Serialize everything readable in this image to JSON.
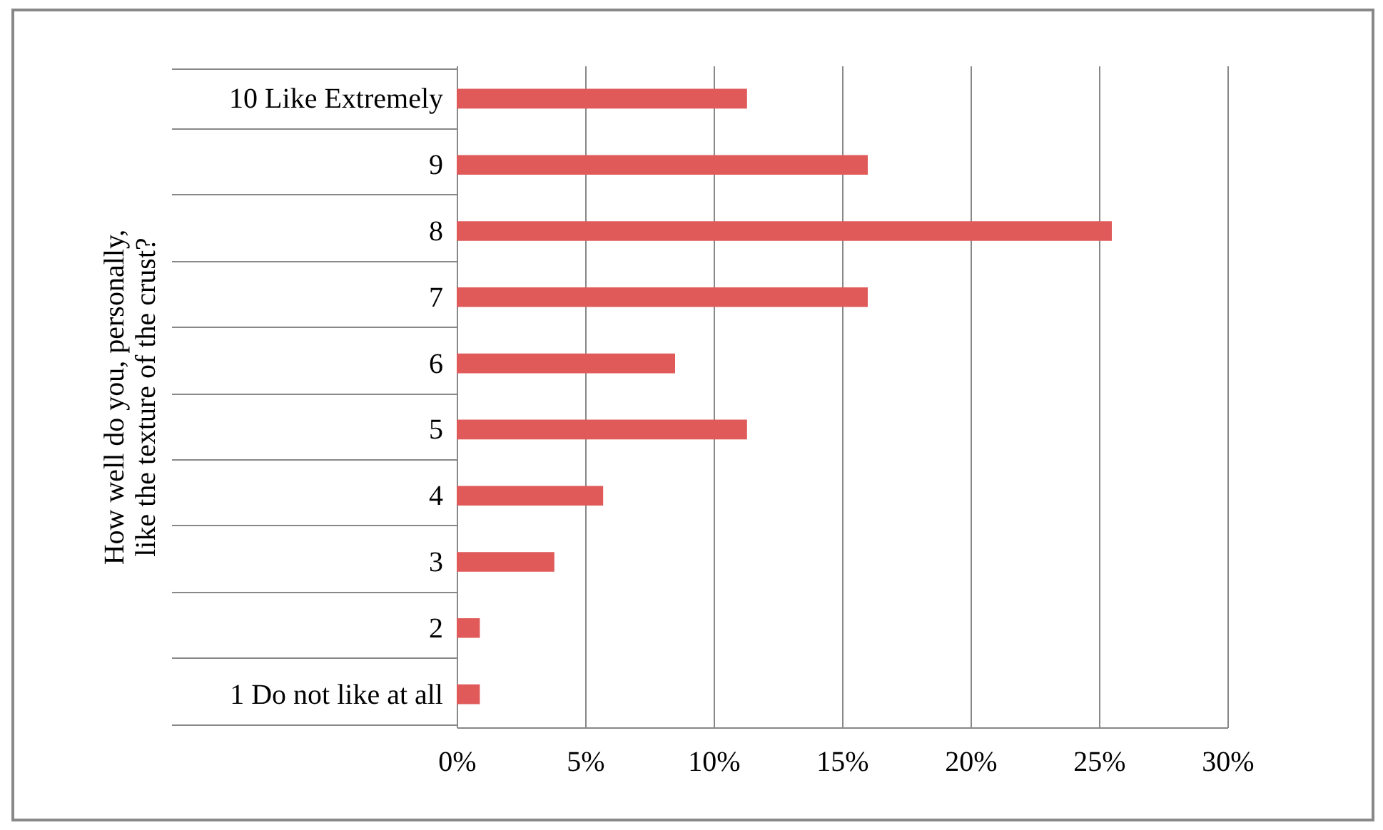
{
  "chart_data": {
    "type": "bar",
    "orientation": "horizontal",
    "ylabel": "How well do you, personally, like the texture of the crust?",
    "categories": [
      "10 Like Extremely",
      "9",
      "8",
      "7",
      "6",
      "5",
      "4",
      "3",
      "2",
      "1 Do not like at all"
    ],
    "values": [
      11.3,
      16.0,
      25.5,
      16.0,
      8.5,
      11.3,
      5.7,
      3.8,
      0.9,
      0.9
    ],
    "color": "#e05a5a",
    "xlim": [
      0,
      30
    ],
    "xticks": [
      {
        "value": 0,
        "label": "0%"
      },
      {
        "value": 5,
        "label": "5%"
      },
      {
        "value": 10,
        "label": "10%"
      },
      {
        "value": 15,
        "label": "15%"
      },
      {
        "value": 20,
        "label": "20%"
      },
      {
        "value": 25,
        "label": "25%"
      },
      {
        "value": 30,
        "label": "30%"
      }
    ],
    "grid": "x"
  }
}
